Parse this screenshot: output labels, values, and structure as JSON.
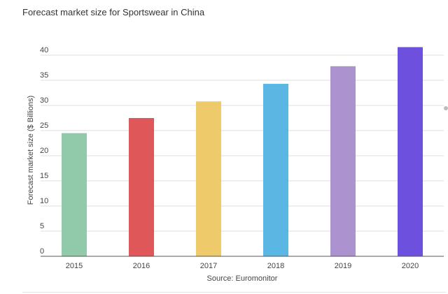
{
  "chart_data": {
    "type": "bar",
    "title": "Forecast market size for Sportswear in China",
    "ylabel": "Forecast market size ($ Billions)",
    "xlabel": "",
    "source": "Source: Euromonitor",
    "categories": [
      "2015",
      "2016",
      "2017",
      "2018",
      "2019",
      "2020"
    ],
    "values": [
      24.5,
      27.5,
      30.8,
      34.3,
      37.8,
      41.6
    ],
    "colors": [
      "#91c9ab",
      "#e05759",
      "#efca6a",
      "#5ab7e4",
      "#ac92ce",
      "#6d51de"
    ],
    "ylim": [
      0,
      40
    ],
    "yticks": [
      0,
      5,
      10,
      15,
      20,
      25,
      30,
      35,
      40
    ],
    "grid": true,
    "legend": "none"
  }
}
